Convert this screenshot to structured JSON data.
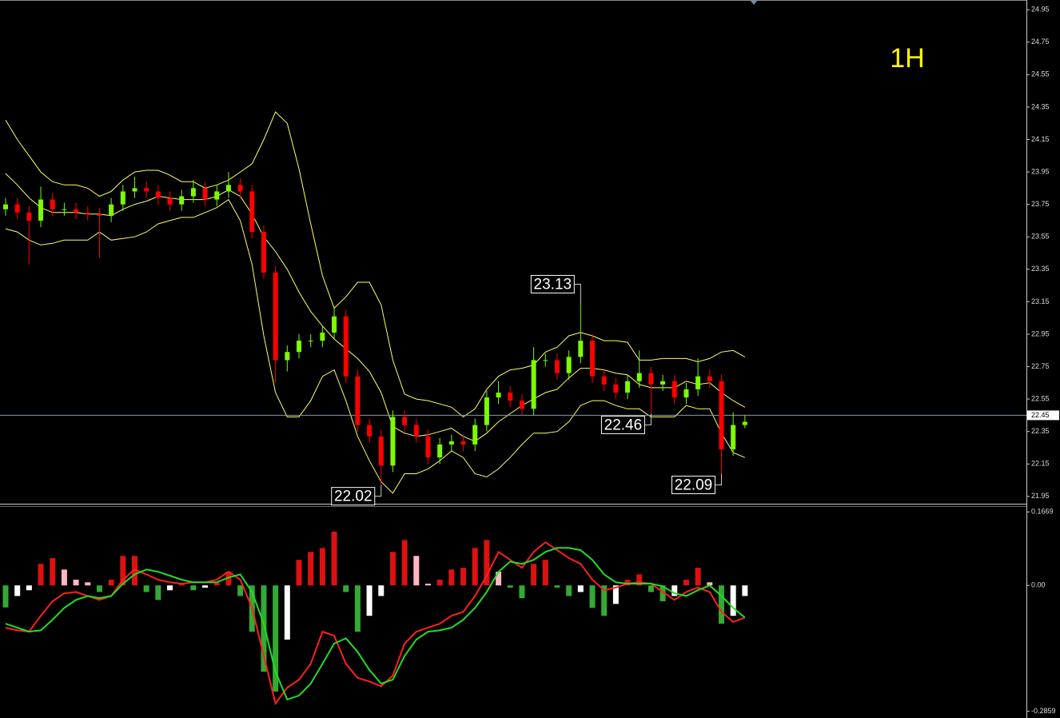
{
  "chart_data": [
    {
      "type": "candlestick",
      "title": "1H",
      "title_color": "#ffff00",
      "up_color": "#7cfc00",
      "down_color": "#ff0000",
      "band_color": "#ffff66",
      "price_line_color": "#8899aa",
      "open": [
        23.72,
        23.75,
        23.7,
        23.65,
        23.78,
        23.72,
        23.72,
        23.7,
        23.69,
        23.68,
        23.75,
        23.83,
        23.85,
        23.83,
        23.79,
        23.75,
        23.8,
        23.85,
        23.78,
        23.83,
        23.87,
        23.83,
        23.58,
        23.33,
        22.79,
        22.84,
        22.91,
        22.91,
        22.96,
        23.06,
        22.69,
        22.39,
        22.32,
        22.14,
        22.44,
        22.39,
        22.32,
        22.19,
        22.27,
        22.29,
        22.27,
        22.39,
        22.56,
        22.59,
        22.54,
        22.49,
        22.79,
        22.79,
        22.71,
        22.81,
        22.91,
        22.69,
        22.64,
        22.59,
        22.66,
        22.71,
        22.64,
        22.66,
        22.56,
        22.61,
        22.69,
        22.66,
        22.24,
        22.39
      ],
      "high": [
        23.79,
        23.79,
        23.74,
        23.86,
        23.82,
        23.76,
        23.76,
        23.74,
        23.73,
        23.79,
        23.87,
        23.92,
        23.89,
        23.87,
        23.83,
        23.84,
        23.9,
        23.89,
        23.87,
        23.95,
        23.91,
        23.87,
        23.62,
        23.37,
        22.88,
        22.95,
        22.95,
        23.0,
        23.12,
        23.1,
        22.73,
        22.43,
        22.36,
        22.48,
        22.48,
        22.43,
        22.36,
        22.31,
        22.33,
        22.33,
        22.43,
        22.6,
        22.66,
        22.63,
        22.58,
        22.87,
        22.83,
        22.83,
        22.85,
        23.13,
        22.95,
        22.73,
        22.68,
        22.7,
        22.85,
        22.75,
        22.7,
        22.7,
        22.65,
        22.8,
        22.73,
        22.7,
        22.47,
        22.45
      ],
      "low": [
        23.68,
        23.66,
        23.38,
        23.61,
        23.68,
        23.68,
        23.66,
        23.65,
        23.42,
        23.64,
        23.71,
        23.79,
        23.79,
        23.75,
        23.71,
        23.71,
        23.76,
        23.74,
        23.74,
        23.79,
        23.79,
        23.54,
        23.29,
        22.65,
        22.72,
        22.8,
        22.87,
        22.87,
        22.92,
        22.65,
        22.35,
        22.28,
        22.02,
        22.1,
        22.35,
        22.28,
        22.15,
        22.15,
        22.23,
        22.23,
        22.23,
        22.35,
        22.52,
        22.5,
        22.45,
        22.45,
        22.75,
        22.67,
        22.67,
        22.77,
        22.65,
        22.6,
        22.55,
        22.55,
        22.62,
        22.46,
        22.6,
        22.52,
        22.52,
        22.57,
        22.62,
        22.09,
        22.2,
        22.37
      ],
      "close": [
        23.75,
        23.7,
        23.65,
        23.78,
        23.72,
        23.72,
        23.7,
        23.69,
        23.68,
        23.75,
        23.83,
        23.85,
        23.83,
        23.79,
        23.75,
        23.8,
        23.85,
        23.78,
        23.83,
        23.87,
        23.83,
        23.58,
        23.33,
        22.79,
        22.84,
        22.91,
        22.91,
        22.96,
        23.06,
        22.69,
        22.39,
        22.32,
        22.14,
        22.44,
        22.39,
        22.32,
        22.19,
        22.27,
        22.29,
        22.27,
        22.39,
        22.56,
        22.59,
        22.54,
        22.49,
        22.79,
        22.79,
        22.71,
        22.81,
        22.91,
        22.69,
        22.64,
        22.59,
        22.66,
        22.71,
        22.64,
        22.66,
        22.56,
        22.61,
        22.69,
        22.66,
        22.24,
        22.39,
        22.41
      ],
      "upper": [
        24.27,
        24.15,
        24.05,
        23.95,
        23.89,
        23.87,
        23.87,
        23.85,
        23.8,
        23.83,
        23.9,
        23.95,
        23.96,
        23.96,
        23.93,
        23.89,
        23.89,
        23.85,
        23.87,
        23.9,
        23.95,
        24.0,
        24.15,
        24.32,
        24.25,
        23.97,
        23.63,
        23.31,
        23.11,
        23.18,
        23.27,
        23.27,
        23.13,
        22.79,
        22.58,
        22.55,
        22.54,
        22.52,
        22.5,
        22.44,
        22.49,
        22.61,
        22.69,
        22.73,
        22.74,
        22.76,
        22.84,
        22.87,
        22.94,
        22.96,
        22.94,
        22.91,
        22.91,
        22.9,
        22.79,
        22.79,
        22.8,
        22.8,
        22.8,
        22.78,
        22.8,
        22.84,
        22.85,
        22.81
      ],
      "middle": [
        23.94,
        23.87,
        23.79,
        23.73,
        23.7,
        23.7,
        23.7,
        23.69,
        23.69,
        23.68,
        23.72,
        23.75,
        23.77,
        23.8,
        23.79,
        23.78,
        23.78,
        23.78,
        23.8,
        23.84,
        23.8,
        23.69,
        23.55,
        23.46,
        23.35,
        23.21,
        23.09,
        23.0,
        22.92,
        22.86,
        22.8,
        22.72,
        22.59,
        22.38,
        22.34,
        22.32,
        22.33,
        22.35,
        22.37,
        22.32,
        22.29,
        22.34,
        22.41,
        22.46,
        22.51,
        22.55,
        22.59,
        22.61,
        22.68,
        22.74,
        22.74,
        22.73,
        22.71,
        22.7,
        22.64,
        22.62,
        22.62,
        22.62,
        22.66,
        22.64,
        22.65,
        22.59,
        22.54,
        22.5
      ],
      "lower": [
        23.6,
        23.58,
        23.53,
        23.5,
        23.51,
        23.53,
        23.53,
        23.53,
        23.58,
        23.53,
        23.54,
        23.55,
        23.58,
        23.63,
        23.65,
        23.67,
        23.67,
        23.7,
        23.73,
        23.78,
        23.65,
        23.38,
        22.94,
        22.59,
        22.44,
        22.44,
        22.54,
        22.69,
        22.73,
        22.54,
        22.32,
        22.17,
        22.04,
        21.97,
        22.09,
        22.09,
        22.12,
        22.17,
        22.23,
        22.19,
        22.09,
        22.07,
        22.12,
        22.19,
        22.27,
        22.34,
        22.34,
        22.35,
        22.41,
        22.51,
        22.54,
        22.54,
        22.51,
        22.49,
        22.49,
        22.44,
        22.44,
        22.44,
        22.51,
        22.49,
        22.49,
        22.34,
        22.22,
        22.19
      ],
      "annotations": [
        23.13,
        22.46,
        22.02,
        22.09
      ],
      "current_price": 22.45,
      "ylim": [
        21.9,
        25.01
      ],
      "yticks": [
        24.95,
        24.75,
        24.55,
        24.35,
        24.15,
        23.95,
        23.75,
        23.55,
        23.35,
        23.15,
        22.95,
        22.75,
        22.55,
        22.35,
        22.15,
        21.95
      ]
    },
    {
      "type": "macd",
      "histogram": [
        -0.05,
        -0.024,
        -0.011,
        0.049,
        0.062,
        0.036,
        0.013,
        0.007,
        -0.015,
        0.013,
        0.067,
        0.067,
        -0.015,
        -0.033,
        -0.011,
        0.004,
        -0.011,
        -0.005,
        0.007,
        0.031,
        -0.024,
        -0.105,
        -0.196,
        -0.241,
        -0.123,
        0.058,
        0.076,
        0.085,
        0.122,
        -0.015,
        -0.105,
        -0.069,
        -0.024,
        0.076,
        0.103,
        0.067,
        0.004,
        0.013,
        0.036,
        0.04,
        0.085,
        0.103,
        0.031,
        -0.005,
        -0.029,
        0.049,
        0.058,
        -0.005,
        -0.024,
        -0.015,
        -0.051,
        -0.069,
        -0.042,
        0.013,
        0.025,
        -0.015,
        -0.036,
        -0.024,
        0.013,
        0.04,
        0.007,
        -0.087,
        -0.069,
        -0.024
      ],
      "macd": [
        -0.096,
        -0.102,
        -0.105,
        -0.069,
        -0.036,
        -0.018,
        -0.015,
        -0.024,
        -0.033,
        -0.024,
        0.013,
        0.036,
        0.025,
        0.013,
        0.007,
        0.004,
        0.007,
        0.007,
        0.013,
        0.031,
        0.013,
        -0.051,
        -0.16,
        -0.268,
        -0.232,
        -0.214,
        -0.178,
        -0.105,
        -0.114,
        -0.178,
        -0.21,
        -0.218,
        -0.229,
        -0.205,
        -0.132,
        -0.105,
        -0.096,
        -0.087,
        -0.069,
        -0.06,
        -0.024,
        0.022,
        0.076,
        0.058,
        0.04,
        0.076,
        0.098,
        0.08,
        0.062,
        0.049,
        0.013,
        -0.011,
        -0.005,
        0.004,
        0.007,
        0.004,
        -0.015,
        -0.033,
        -0.015,
        -0.005,
        -0.015,
        -0.06,
        -0.083,
        -0.073
      ],
      "signal": [
        -0.087,
        -0.096,
        -0.105,
        -0.102,
        -0.078,
        -0.051,
        -0.033,
        -0.024,
        -0.029,
        -0.024,
        0.004,
        0.025,
        0.036,
        0.031,
        0.022,
        0.013,
        0.007,
        0.007,
        0.007,
        0.018,
        0.025,
        -0.015,
        -0.087,
        -0.196,
        -0.259,
        -0.25,
        -0.223,
        -0.178,
        -0.132,
        -0.12,
        -0.151,
        -0.192,
        -0.223,
        -0.214,
        -0.16,
        -0.123,
        -0.105,
        -0.102,
        -0.096,
        -0.078,
        -0.051,
        -0.015,
        0.031,
        0.054,
        0.049,
        0.058,
        0.076,
        0.085,
        0.085,
        0.08,
        0.058,
        0.025,
        0.007,
        0.004,
        0.004,
        0.004,
        -0.002,
        -0.018,
        -0.024,
        -0.011,
        0,
        -0.024,
        -0.051,
        -0.073
      ],
      "macd_color": "#ff2020",
      "signal_color": "#22dd22",
      "hist_colors": {
        "rising_up": "#dd1111",
        "falling_up": "#ffb6c1",
        "falling_down": "#33aa33",
        "rising_down": "#ffffff"
      },
      "ylim": [
        -0.301,
        0.18
      ],
      "yticks": [
        0.1669,
        {
          "value": 0,
          "label": "0.00"
        },
        -0.2859
      ]
    }
  ]
}
